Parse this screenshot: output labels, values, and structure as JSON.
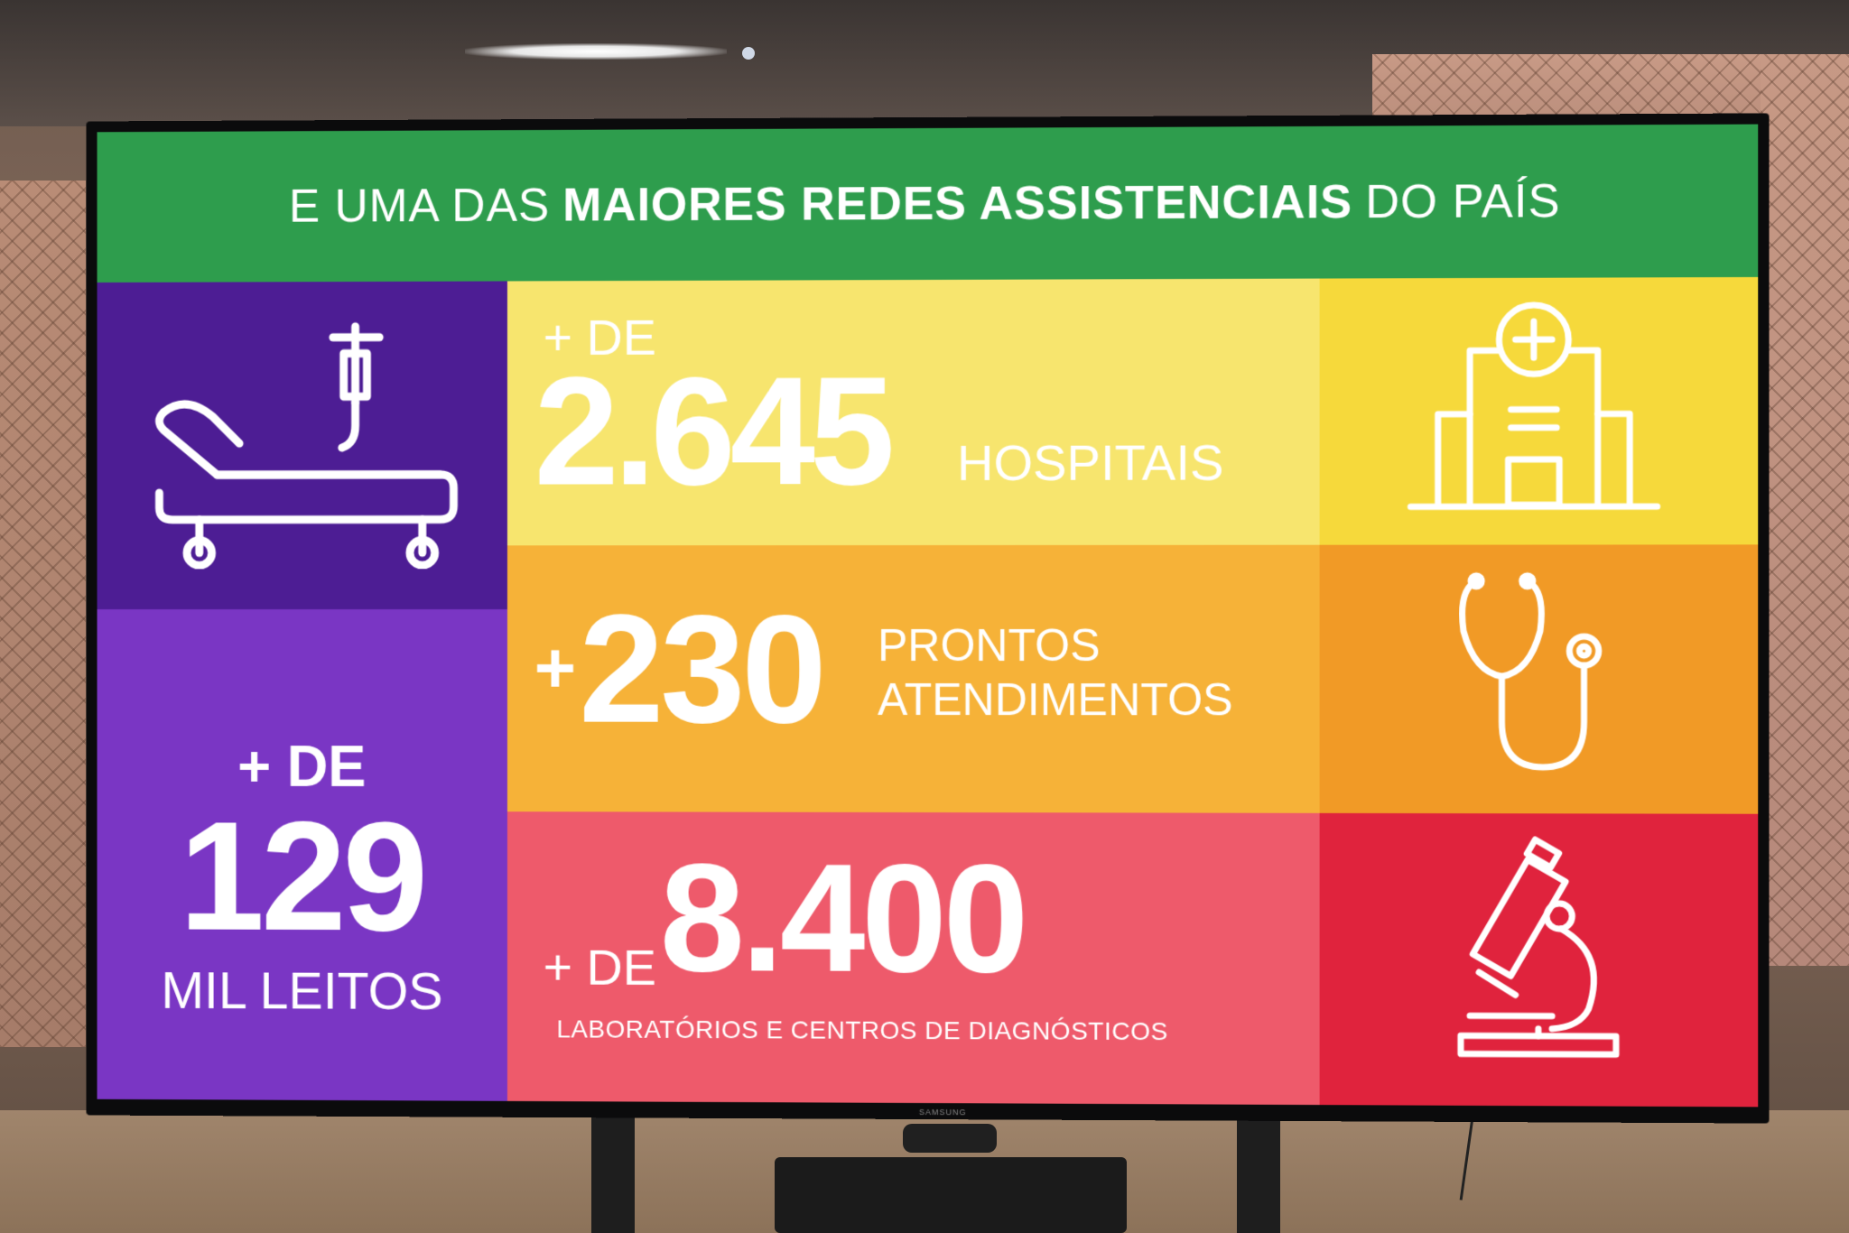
{
  "screen": {
    "banner": {
      "pre": "E UMA DAS",
      "bold": "MAIORES REDES ASSISTENCIAIS",
      "post": "DO PAÍS"
    },
    "leitos": {
      "prefix": "+ DE",
      "number": "129",
      "suffix": "MIL LEITOS"
    },
    "hospitais": {
      "prefix": "+ DE",
      "number": "2.645",
      "suffix": "HOSPITAIS"
    },
    "prontos": {
      "plus": "+",
      "number": "230",
      "line1": "PRONTOS",
      "line2": "ATENDIMENTOS"
    },
    "laboratorios": {
      "prefix": "+ DE",
      "number": "8.400",
      "caption": "LABORATÓRIOS E CENTROS DE DIAGNÓSTICOS"
    }
  },
  "tv_brand": "SAMSUNG",
  "icons": [
    "hospital-bed-icon",
    "hospital-building-icon",
    "stethoscope-icon",
    "microscope-icon"
  ],
  "colors": {
    "green": "#2e9d4d",
    "purple_dark": "#4d1d94",
    "purple": "#7a36c4",
    "yellow": "#f7e56e",
    "orange": "#f6b238",
    "red": "#ee5a6b",
    "red_dark": "#e0233d"
  }
}
